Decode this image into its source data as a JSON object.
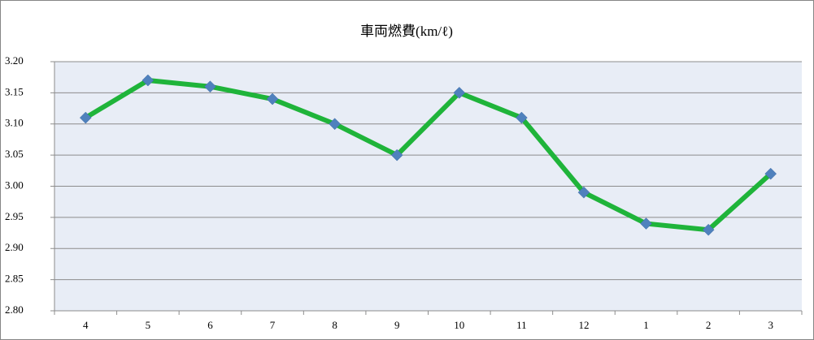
{
  "chart_data": {
    "type": "line",
    "title": "車両燃費(km/ℓ)",
    "categories": [
      "4",
      "5",
      "6",
      "7",
      "8",
      "9",
      "10",
      "11",
      "12",
      "1",
      "2",
      "3"
    ],
    "values": [
      3.11,
      3.17,
      3.16,
      3.14,
      3.1,
      3.05,
      3.15,
      3.11,
      2.99,
      2.94,
      2.93,
      3.02
    ],
    "color": "#1fb43a",
    "marker_color": "#4f81bd",
    "ylim": [
      2.8,
      3.2
    ],
    "yticks": [
      {
        "value": 2.8,
        "label": "2.80"
      },
      {
        "value": 2.85,
        "label": "2.85"
      },
      {
        "value": 2.9,
        "label": "2.90"
      },
      {
        "value": 2.95,
        "label": "2.95"
      },
      {
        "value": 3.0,
        "label": "3.00"
      },
      {
        "value": 3.05,
        "label": "3.05"
      },
      {
        "value": 3.1,
        "label": "3.10"
      },
      {
        "value": 3.15,
        "label": "3.15"
      },
      {
        "value": 3.2,
        "label": "3.20"
      }
    ],
    "grid": true
  }
}
